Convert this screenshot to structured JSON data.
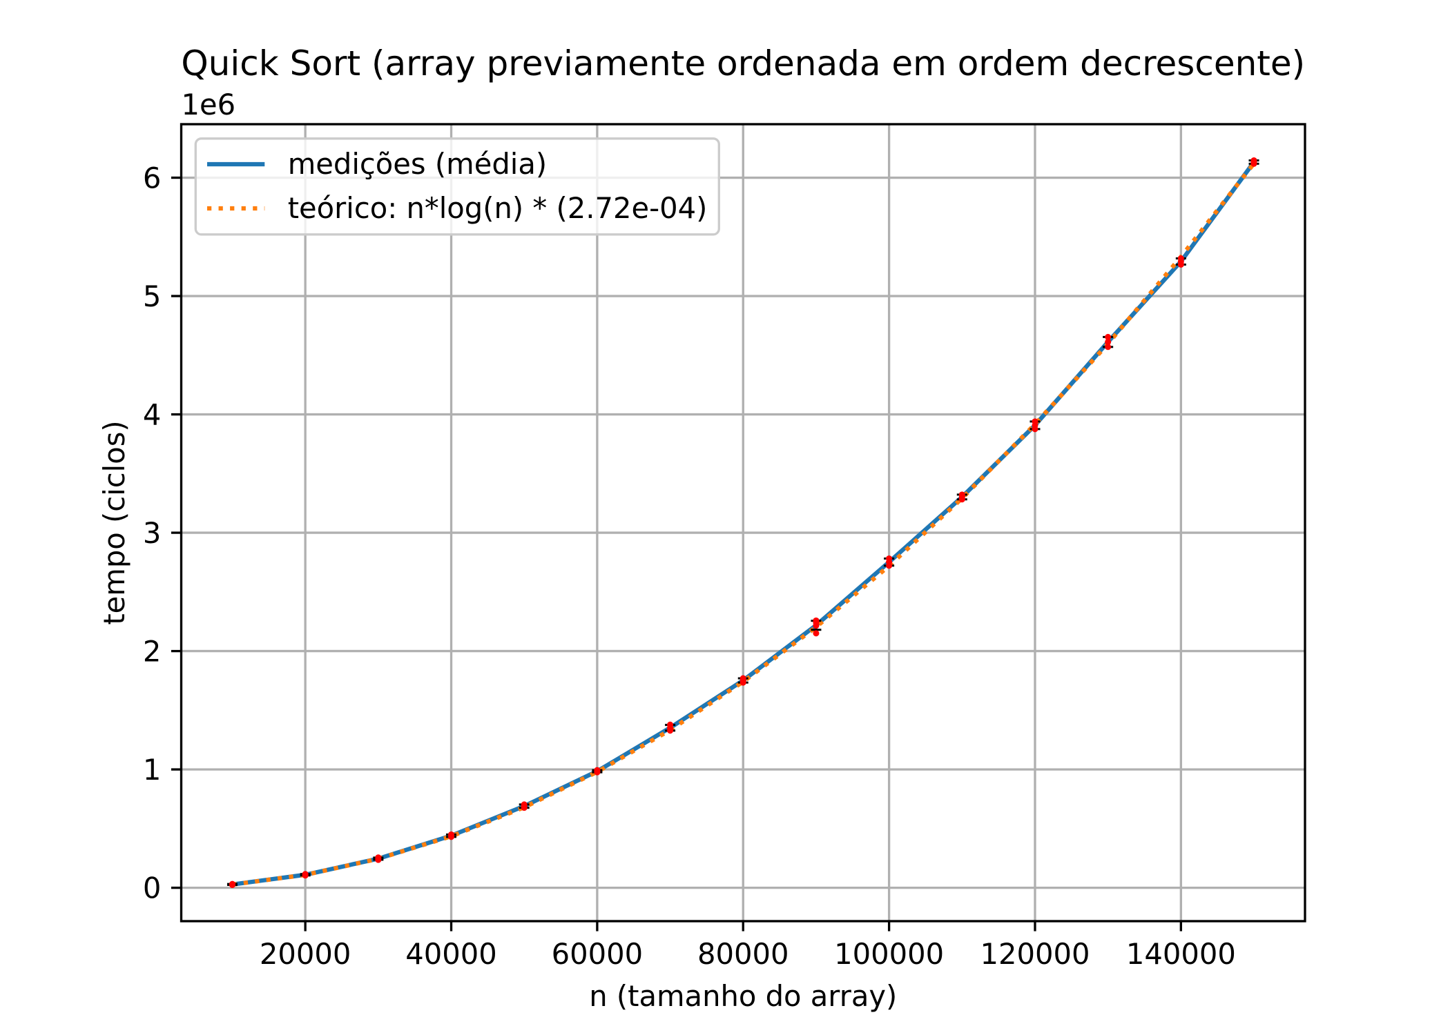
{
  "chart_data": {
    "type": "line",
    "title": "Quick Sort (array previamente ordenada em ordem decrescente)",
    "xlabel": "n (tamanho do array)",
    "ylabel": "tempo (ciclos)",
    "y_offset_text": "1e6",
    "grid": true,
    "legend": "top-left",
    "x": [
      10000,
      20000,
      30000,
      40000,
      50000,
      60000,
      70000,
      80000,
      90000,
      100000,
      110000,
      120000,
      130000,
      140000,
      150000
    ],
    "xlim": [
      3000,
      157000
    ],
    "ylim": [
      -282000,
      6452000
    ],
    "xticks": [
      20000,
      40000,
      60000,
      80000,
      100000,
      120000,
      140000
    ],
    "xtick_labels": [
      "20000",
      "40000",
      "60000",
      "80000",
      "100000",
      "120000",
      "140000"
    ],
    "yticks": [
      0,
      1000000,
      2000000,
      3000000,
      4000000,
      5000000,
      6000000
    ],
    "ytick_labels": [
      "0",
      "1",
      "2",
      "3",
      "4",
      "5",
      "6"
    ],
    "series": [
      {
        "name": "medições (média)",
        "color": "#1f77b4",
        "style": "solid",
        "values": [
          28000,
          110000,
          246000,
          440000,
          690000,
          985000,
          1352000,
          1752000,
          2218000,
          2752000,
          3302000,
          3908000,
          4612000,
          5292000,
          6132000
        ]
      },
      {
        "name": "teórico: n*log(n) * (2.72e-04)",
        "color": "#ff7f0e",
        "style": "dotted",
        "values": [
          27200,
          108800,
          244800,
          435200,
          680000,
          979200,
          1332800,
          1740800,
          2203200,
          2720000,
          3291200,
          3916800,
          4596800,
          5331200,
          6120000
        ]
      }
    ],
    "error_bars": {
      "color": "#000000",
      "values": [
        4000,
        6000,
        9000,
        10000,
        14000,
        9000,
        24000,
        18000,
        38000,
        30000,
        20000,
        32000,
        42000,
        26000,
        14000
      ]
    },
    "samples": {
      "color": "#ff0000",
      "values": [
        [
          24000,
          28000,
          32000
        ],
        [
          104000,
          110000,
          116000
        ],
        [
          236000,
          246000,
          256000
        ],
        [
          430000,
          440000,
          450000
        ],
        [
          676000,
          690000,
          704000
        ],
        [
          976000,
          985000,
          994000
        ],
        [
          1328000,
          1350000,
          1378000
        ],
        [
          1734000,
          1752000,
          1770000
        ],
        [
          2150000,
          2215000,
          2240000,
          2258000
        ],
        [
          2722000,
          2752000,
          2782000
        ],
        [
          3282000,
          3302000,
          3322000
        ],
        [
          3876000,
          3908000,
          3940000
        ],
        [
          4570000,
          4612000,
          4654000
        ],
        [
          5266000,
          5292000,
          5318000
        ],
        [
          6118000,
          6132000,
          6146000
        ]
      ]
    }
  }
}
